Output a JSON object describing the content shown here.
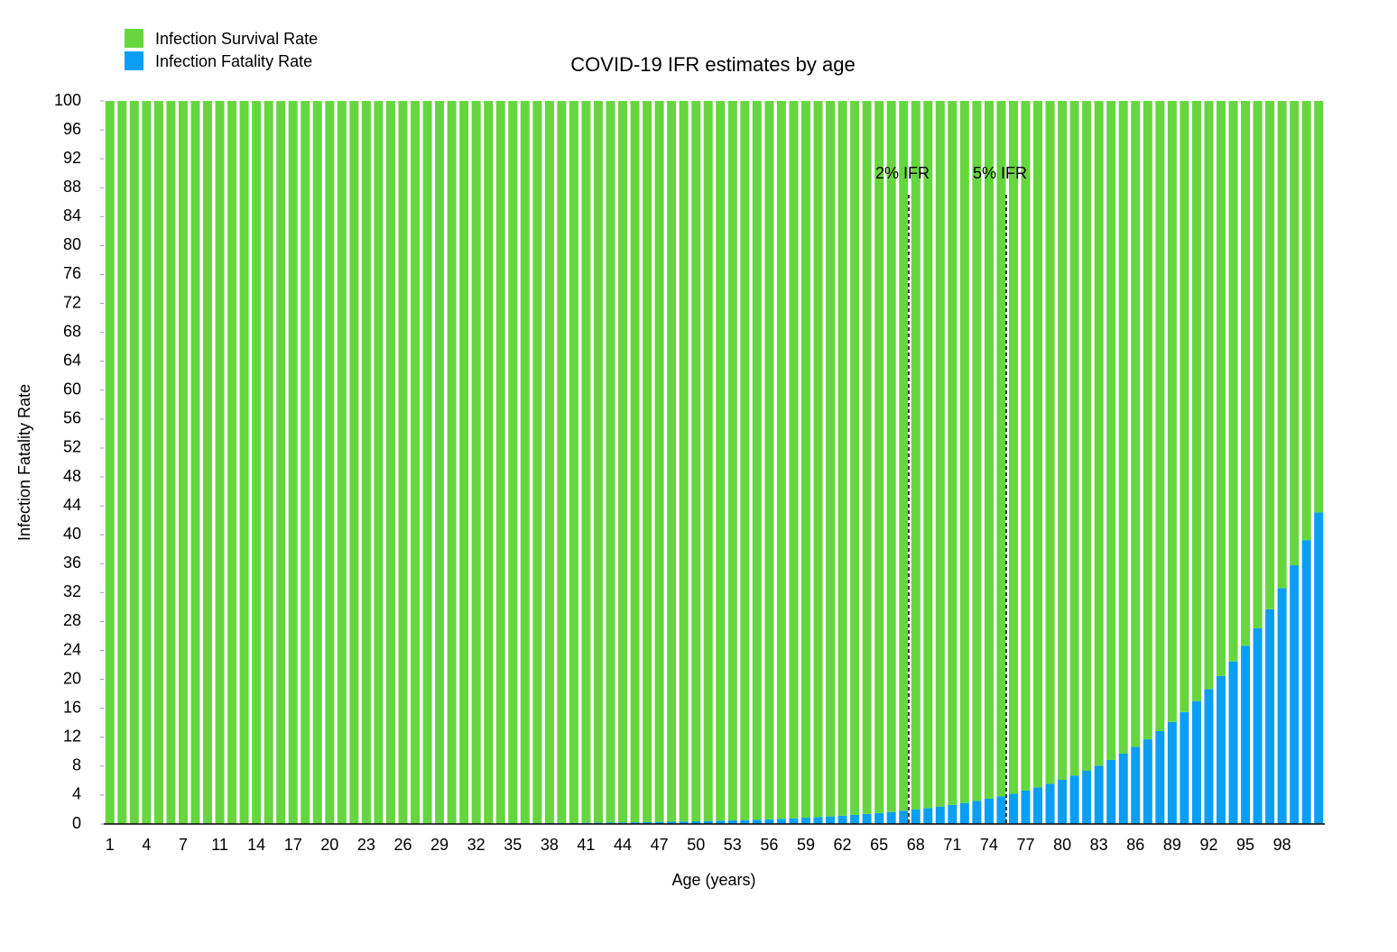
{
  "chart_data": {
    "type": "stacked_bar",
    "title": "COVID-19 IFR estimates by age",
    "x_label": "Age (years)",
    "y_label": "Infection Fatality Rate",
    "annotations": [
      "2% IFR",
      "5% IFR"
    ],
    "ylim": [
      0,
      100
    ],
    "yticks": [
      0,
      4,
      8,
      12,
      16,
      20,
      24,
      28,
      32,
      36,
      40,
      44,
      48,
      52,
      56,
      60,
      64,
      68,
      72,
      76,
      80,
      84,
      88,
      92,
      96,
      100
    ],
    "legend": "top-left",
    "categories": [
      "1",
      null,
      null,
      "4",
      null,
      null,
      "7",
      null,
      null,
      "11",
      null,
      null,
      "14",
      null,
      null,
      "17",
      null,
      null,
      "20",
      null,
      null,
      "23",
      null,
      null,
      "26",
      null,
      null,
      "29",
      null,
      null,
      "32",
      null,
      null,
      "35",
      null,
      null,
      "38",
      null,
      null,
      "41",
      null,
      null,
      "44",
      null,
      null,
      "47",
      null,
      null,
      "50",
      null,
      null,
      "53",
      null,
      null,
      "56",
      null,
      null,
      "59",
      null,
      null,
      "62",
      null,
      null,
      "65",
      null,
      null,
      "68",
      null,
      null,
      "71",
      null,
      null,
      "74",
      null,
      null,
      "77",
      null,
      null,
      "80",
      null,
      null,
      "83",
      null,
      null,
      "86",
      null,
      null,
      "89",
      null,
      null,
      "92",
      null,
      null,
      "95",
      null,
      null,
      "98",
      null,
      null,
      null
    ],
    "series": [
      {
        "name": "Infection Survival Rate",
        "color": "#66d63f",
        "values": [
          99.996,
          99.996,
          99.995,
          99.995,
          99.994,
          99.993,
          99.993,
          99.992,
          99.991,
          99.99,
          99.989,
          99.988,
          99.987,
          99.986,
          99.984,
          99.983,
          99.981,
          99.979,
          99.977,
          99.975,
          99.972,
          99.969,
          99.966,
          99.963,
          99.96,
          99.956,
          99.951,
          99.947,
          99.942,
          99.936,
          99.93,
          99.923,
          99.915,
          99.907,
          99.898,
          99.888,
          99.877,
          99.865,
          99.852,
          99.838,
          99.822,
          99.805,
          99.786,
          99.765,
          99.742,
          99.717,
          99.689,
          99.659,
          99.625,
          99.589,
          99.549,
          99.505,
          99.456,
          99.403,
          99.345,
          99.281,
          99.211,
          99.134,
          99.05,
          98.957,
          98.856,
          98.744,
          98.622,
          98.487,
          98.34,
          98.178,
          98,
          97.805,
          97.591,
          97.356,
          97.098,
          96.815,
          96.505,
          96.164,
          95.79,
          95.38,
          94.929,
          94.435,
          93.892,
          93.297,
          92.643,
          91.926,
          91.139,
          90.275,
          89.33,
          88.29,
          87.14,
          85.89,
          84.51,
          83,
          81.35,
          79.53,
          77.53,
          75.34,
          72.94,
          70.3,
          67.4,
          64.22,
          60.74,
          56.91
        ]
      },
      {
        "name": "Infection Fatality Rate",
        "color": "#0a9ff5",
        "values": [
          0.004,
          0.004,
          0.005,
          0.005,
          0.006,
          0.007,
          0.007,
          0.008,
          0.009,
          0.01,
          0.011,
          0.012,
          0.013,
          0.014,
          0.016,
          0.017,
          0.019,
          0.021,
          0.023,
          0.025,
          0.028,
          0.031,
          0.034,
          0.037,
          0.04,
          0.044,
          0.049,
          0.053,
          0.058,
          0.064,
          0.07,
          0.077,
          0.085,
          0.093,
          0.102,
          0.112,
          0.123,
          0.135,
          0.148,
          0.162,
          0.178,
          0.195,
          0.214,
          0.235,
          0.258,
          0.283,
          0.311,
          0.341,
          0.375,
          0.411,
          0.451,
          0.495,
          0.544,
          0.597,
          0.655,
          0.719,
          0.789,
          0.866,
          0.95,
          1.043,
          1.144,
          1.256,
          1.378,
          1.513,
          1.66,
          1.822,
          2,
          2.195,
          2.409,
          2.644,
          2.902,
          3.185,
          3.495,
          3.836,
          4.21,
          4.62,
          5.071,
          5.565,
          6.108,
          6.703,
          7.357,
          8.074,
          8.861,
          9.725,
          10.67,
          11.71,
          12.86,
          14.11,
          15.49,
          17,
          18.65,
          20.47,
          22.47,
          24.66,
          27.06,
          29.7,
          32.6,
          35.78,
          39.26,
          43.09
        ]
      }
    ]
  }
}
